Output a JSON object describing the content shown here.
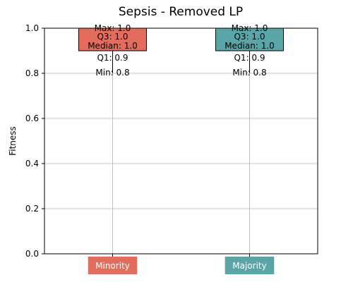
{
  "chart_data": {
    "type": "box",
    "title": "Sepsis - Removed LP",
    "xlabel": "",
    "ylabel": "Fitness",
    "ylim": [
      0.0,
      1.0
    ],
    "yticks": [
      "0.0",
      "0.2",
      "0.4",
      "0.6",
      "0.8",
      "1.0"
    ],
    "grid": true,
    "groups": [
      {
        "label": "Minority",
        "color": "#e46c5c",
        "min": 0.8,
        "q1": 0.9,
        "median": 1.0,
        "q3": 1.0,
        "max": 1.0,
        "annotations": [
          "Max: 1.0",
          "Q3: 1.0",
          "Median: 1.0",
          "Q1: 0.9",
          "Min: 0.8"
        ]
      },
      {
        "label": "Majority",
        "color": "#5aa5a7",
        "min": 0.8,
        "q1": 0.9,
        "median": 1.0,
        "q3": 1.0,
        "max": 1.0,
        "annotations": [
          "Max: 1.0",
          "Q3: 1.0",
          "Median: 1.0",
          "Q1: 0.9",
          "Min: 0.8"
        ]
      }
    ]
  }
}
